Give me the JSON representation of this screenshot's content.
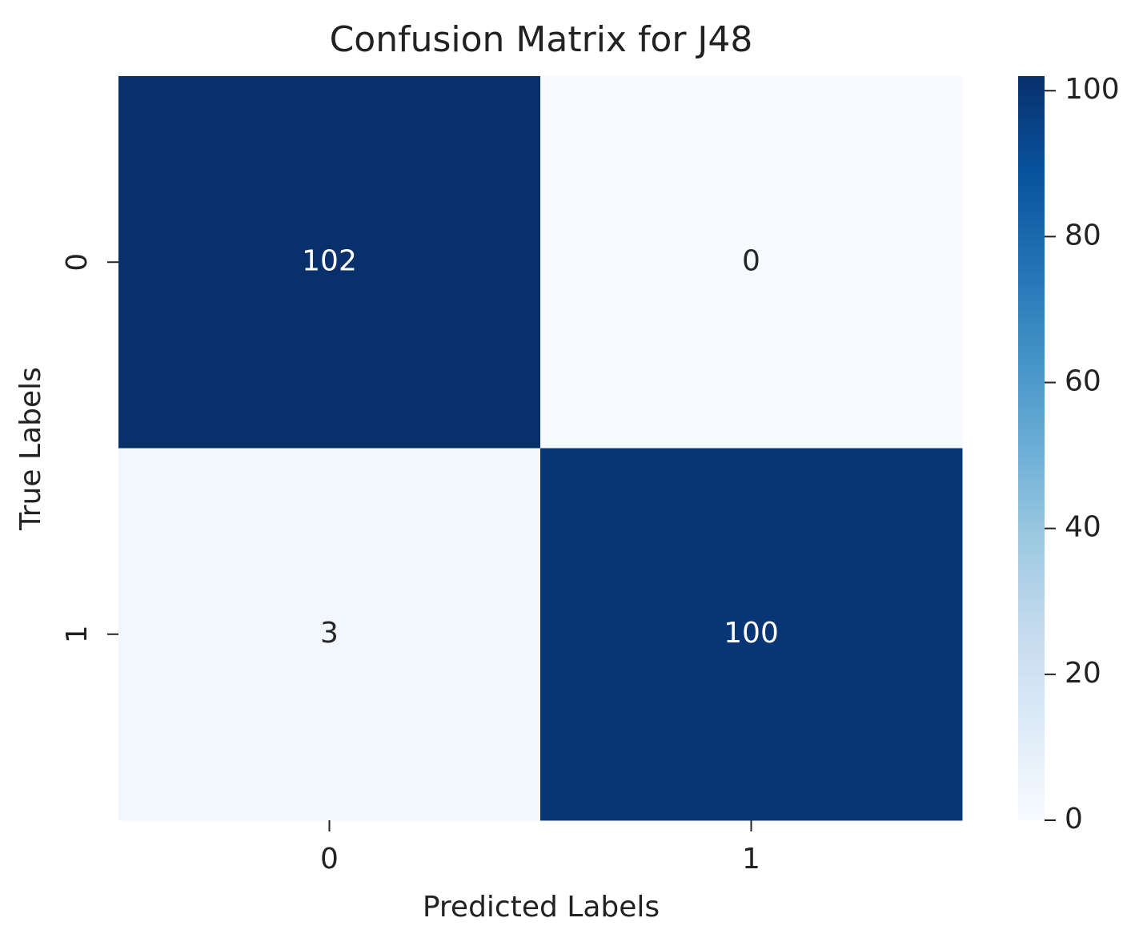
{
  "chart_data": {
    "type": "heatmap",
    "title": "Confusion Matrix for J48",
    "xlabel": "Predicted Labels",
    "ylabel": "True Labels",
    "x_categories": [
      "0",
      "1"
    ],
    "y_categories": [
      "0",
      "1"
    ],
    "values": [
      [
        102,
        0
      ],
      [
        3,
        100
      ]
    ],
    "colormap": [
      "#f7fbff",
      "#deebf7",
      "#c6dbef",
      "#9ecae1",
      "#6baed6",
      "#4292c6",
      "#2171b5",
      "#08519c",
      "#08306b"
    ],
    "clim": [
      0,
      102
    ],
    "colorbar_ticks": [
      0,
      20,
      40,
      60,
      80,
      100
    ]
  }
}
